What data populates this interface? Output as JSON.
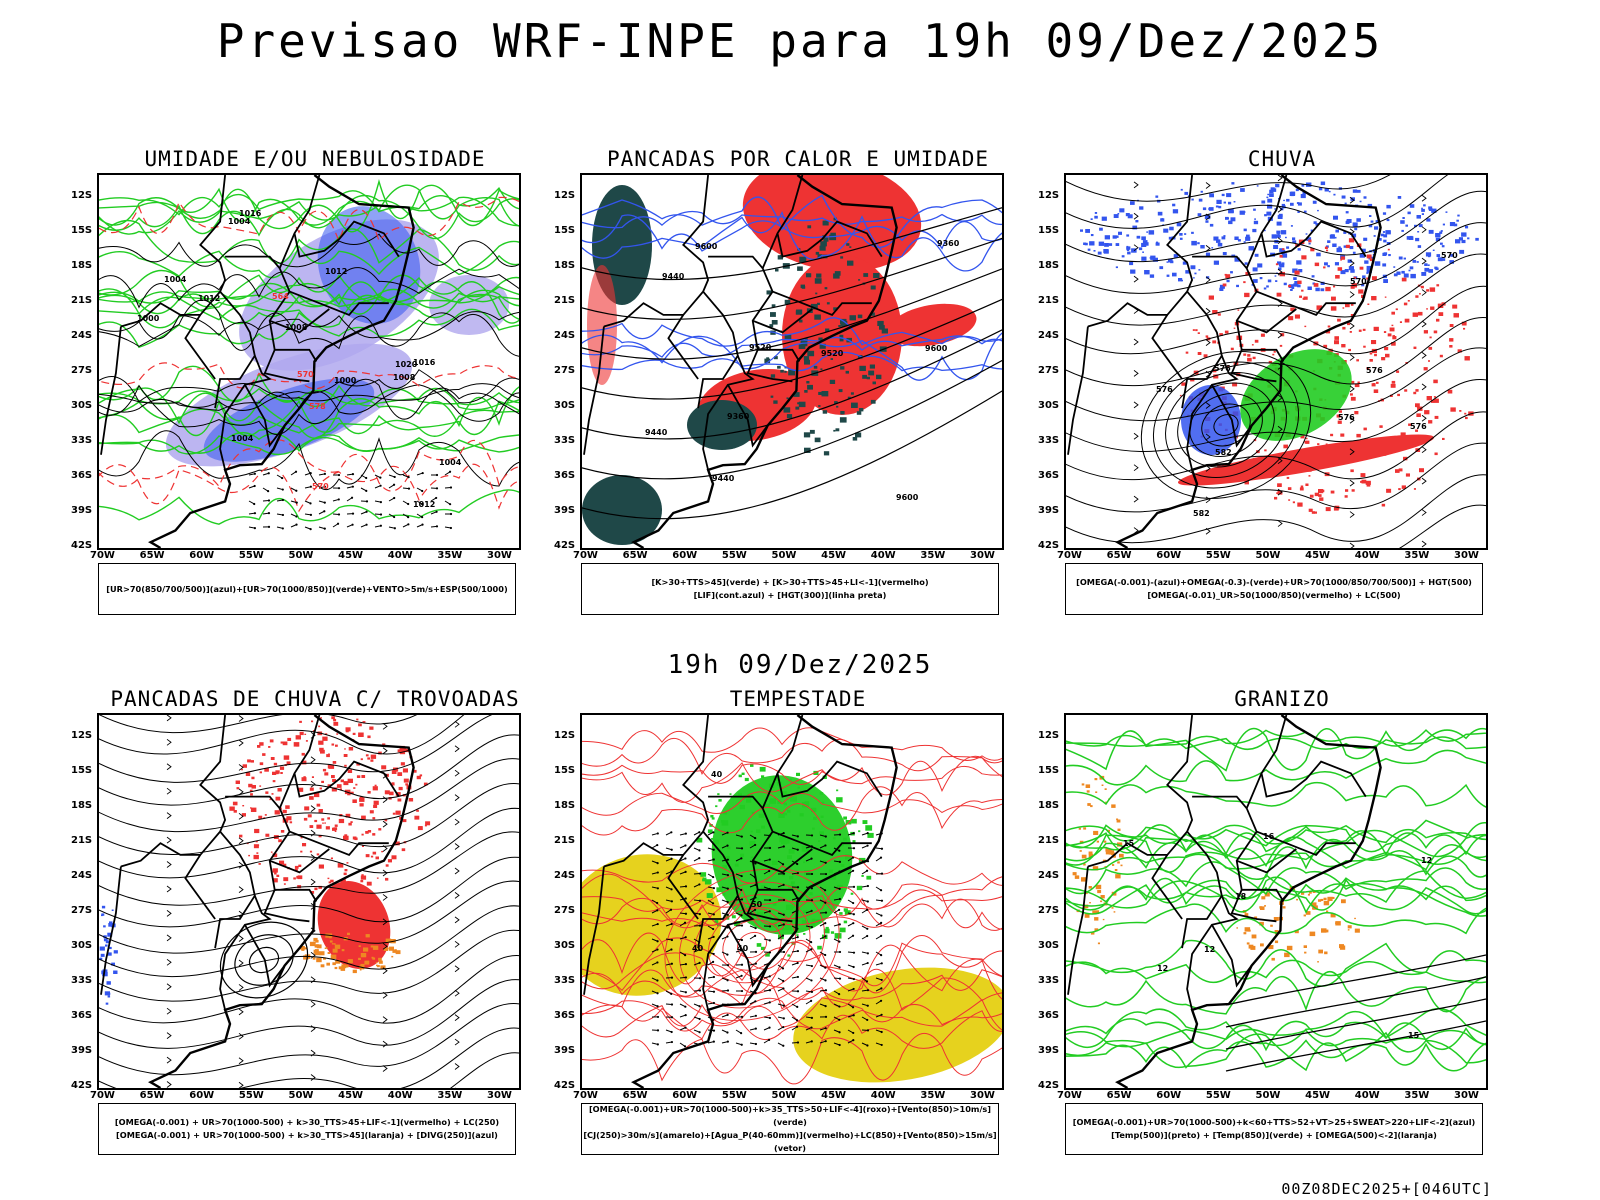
{
  "page_title": "Previsao WRF-INPE  para 19h 09/Dez/2025",
  "mid_title": "19h 09/Dez/2025",
  "footer": "00Z08DEC2025+[046UTC]",
  "axes": {
    "lat_labels": [
      "12S",
      "15S",
      "18S",
      "21S",
      "24S",
      "27S",
      "30S",
      "33S",
      "36S",
      "39S",
      "42S"
    ],
    "lon_labels": [
      "70W",
      "65W",
      "60W",
      "55W",
      "50W",
      "45W",
      "40W",
      "35W",
      "30W"
    ]
  },
  "colors": {
    "blue": "#3355ee",
    "green": "#22cc22",
    "red": "#ee3333",
    "orange": "#ee8822",
    "yellow": "#e6d21e",
    "lavender": "#b0a8ee",
    "darkteal": "#1f4848"
  },
  "panels": [
    {
      "title": "UMIDADE E/OU NEBULOSIDADE",
      "legend": [
        "[UR>70(850/700/500)](azul)+[UR>70(1000/850)](verde)+VENTO>5m/s+ESP(500/1000)"
      ],
      "labels": [
        "1012",
        "1004",
        "1008",
        "1004",
        "1004",
        "1012",
        "1000",
        "1000",
        "1004",
        "1008",
        "1016",
        "1020",
        "1012",
        "1016",
        "578",
        "570",
        "564",
        "570"
      ]
    },
    {
      "title": "PANCADAS POR CALOR E UMIDADE",
      "legend": [
        "[K>30+TTS>45](verde) + [K>30+TTS>45+LI<-1](vermelho)",
        "[LIF](cont.azul) + [HGT(300)](linha preta)"
      ],
      "labels": [
        "9600",
        "9600",
        "9520",
        "9600",
        "9440",
        "9440",
        "9520",
        "9440",
        "9360",
        "9360"
      ]
    },
    {
      "title": "CHUVA",
      "legend": [
        "[OMEGA(-0.001)-(azul)+OMEGA(-0.3)-(verde)+UR>70(1000/850/700/500)] + HGT(500)",
        "[OMEGA(-0.01)_UR>50(1000/850)(vermelho) + LC(500)"
      ],
      "labels": [
        "582",
        "576",
        "576",
        "582",
        "576",
        "570",
        "576",
        "570",
        "576"
      ]
    },
    {
      "title": "PANCADAS DE CHUVA C/ TROVOADAS",
      "legend": [
        "[OMEGA(-0.001) + UR>70(1000-500) + k>30_TTS>45+LIF<-1](vermelho) + LC(250)",
        "[OMEGA(-0.001) + UR>70(1000-500) + k>30_TTS>45](laranja) + [DIVG(250)](azul)"
      ],
      "labels": []
    },
    {
      "title": "TEMPESTADE",
      "legend": [
        "[OMEGA(-0.001)+UR>70(1000-500)+k>35_TTS>50+LIF<-4](roxo)+[Vento(850)>10m/s](verde)",
        "[CJ(250)>30m/s](amarelo)+[Agua_P(40-60mm)](vermelho)+LC(850)+[Vento(850)>15m/s](vetor)"
      ],
      "labels": [
        "40",
        "40",
        "40",
        "50"
      ]
    },
    {
      "title": "GRANIZO",
      "legend": [
        "[OMEGA(-0.001)+UR>70(1000-500)+k<60+TTS>52+VT>25+SWEAT>220+LIF<-2](azul)",
        "[Temp(500)](preto) + [Temp(850)](verde) + [OMEGA(500)<-2](laranja)"
      ],
      "labels": [
        "18",
        "15",
        "12",
        "12",
        "12",
        "16",
        "15"
      ]
    }
  ]
}
